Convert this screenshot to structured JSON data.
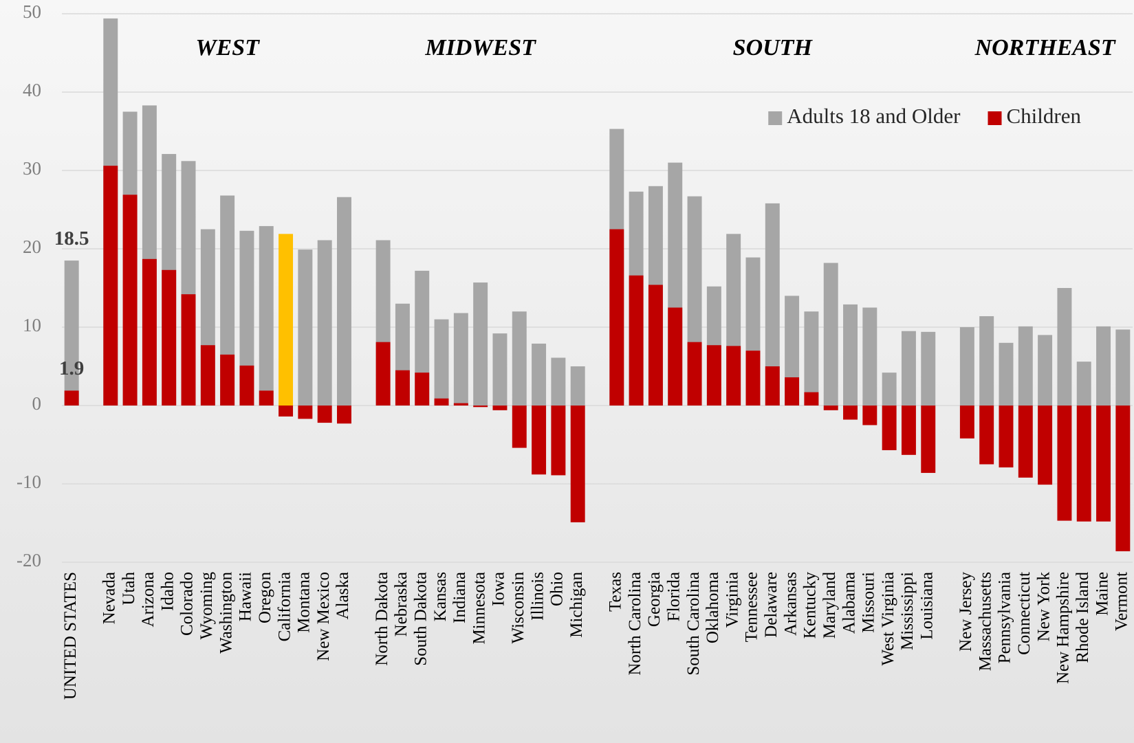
{
  "chart_data": {
    "type": "bar",
    "categories": [
      "UNITED STATES",
      null,
      "Nevada",
      "Utah",
      "Arizona",
      "Idaho",
      "Colorado",
      "Wyoming",
      "Washington",
      "Hawaii",
      "Oregon",
      "California",
      "Montana",
      "New Mexico",
      "Alaska",
      null,
      "North Dakota",
      "Nebraska",
      "South Dakota",
      "Kansas",
      "Indiana",
      "Minnesota",
      "Iowa",
      "Wisconsin",
      "Illinois",
      "Ohio",
      "Michigan",
      null,
      "Texas",
      "North Carolina",
      "Georgia",
      "Florida",
      "South Carolina",
      "Oklahoma",
      "Virginia",
      "Tennessee",
      "Delaware",
      "Arkansas",
      "Kentucky",
      "Maryland",
      "Alabama",
      "Missouri",
      "West Virginia",
      "Mississippi",
      "Louisiana",
      null,
      "New Jersey",
      "Massachusetts",
      "Pennsylvania",
      "Connecticut",
      "New York",
      "New Hampshire",
      "Rhode Island",
      "Maine",
      "Vermont"
    ],
    "region_labels": [
      "WEST",
      "MIDWEST",
      "SOUTH",
      "NORTHEAST"
    ],
    "series": [
      {
        "name": "Adults 18 and Older",
        "color": "#a6a6a6",
        "highlight": {
          "category": "California",
          "color": "#ffc000"
        },
        "values": [
          18.5,
          null,
          49.4,
          37.5,
          38.3,
          32.1,
          31.2,
          22.5,
          26.8,
          22.3,
          22.9,
          21.9,
          19.9,
          21.1,
          26.6,
          null,
          21.1,
          13.0,
          17.2,
          11.0,
          11.8,
          15.7,
          9.2,
          12.0,
          7.9,
          6.1,
          5.0,
          null,
          35.3,
          27.3,
          28.0,
          31.0,
          26.7,
          15.2,
          21.9,
          18.9,
          25.8,
          14.0,
          12.0,
          18.2,
          12.9,
          12.5,
          4.2,
          9.5,
          9.4,
          null,
          10.0,
          11.4,
          8.0,
          10.1,
          9.0,
          15.0,
          5.6,
          10.1,
          9.7
        ],
        "value_labels": {
          "0": "18.5"
        }
      },
      {
        "name": "Children",
        "color": "#c00000",
        "values": [
          1.9,
          null,
          30.6,
          26.9,
          18.7,
          17.3,
          14.2,
          7.7,
          6.5,
          5.1,
          1.9,
          -1.4,
          -1.7,
          -2.2,
          -2.3,
          null,
          8.1,
          4.5,
          4.2,
          0.9,
          0.3,
          -0.2,
          -0.6,
          -5.4,
          -8.8,
          -8.9,
          -14.9,
          null,
          22.5,
          16.6,
          15.4,
          12.5,
          8.1,
          7.7,
          7.6,
          7.0,
          5.0,
          3.6,
          1.7,
          -0.6,
          -1.8,
          -2.5,
          -5.7,
          -6.3,
          -8.6,
          null,
          -4.2,
          -7.5,
          -7.9,
          -9.2,
          -10.1,
          -14.7,
          -14.8,
          -14.8,
          -18.6
        ],
        "value_labels": {
          "0": "1.9"
        }
      }
    ],
    "ylim": [
      -20,
      50
    ],
    "yticks": [
      -20,
      -10,
      0,
      10,
      20,
      30,
      40,
      50
    ],
    "grid": true,
    "legend": "upper right"
  }
}
